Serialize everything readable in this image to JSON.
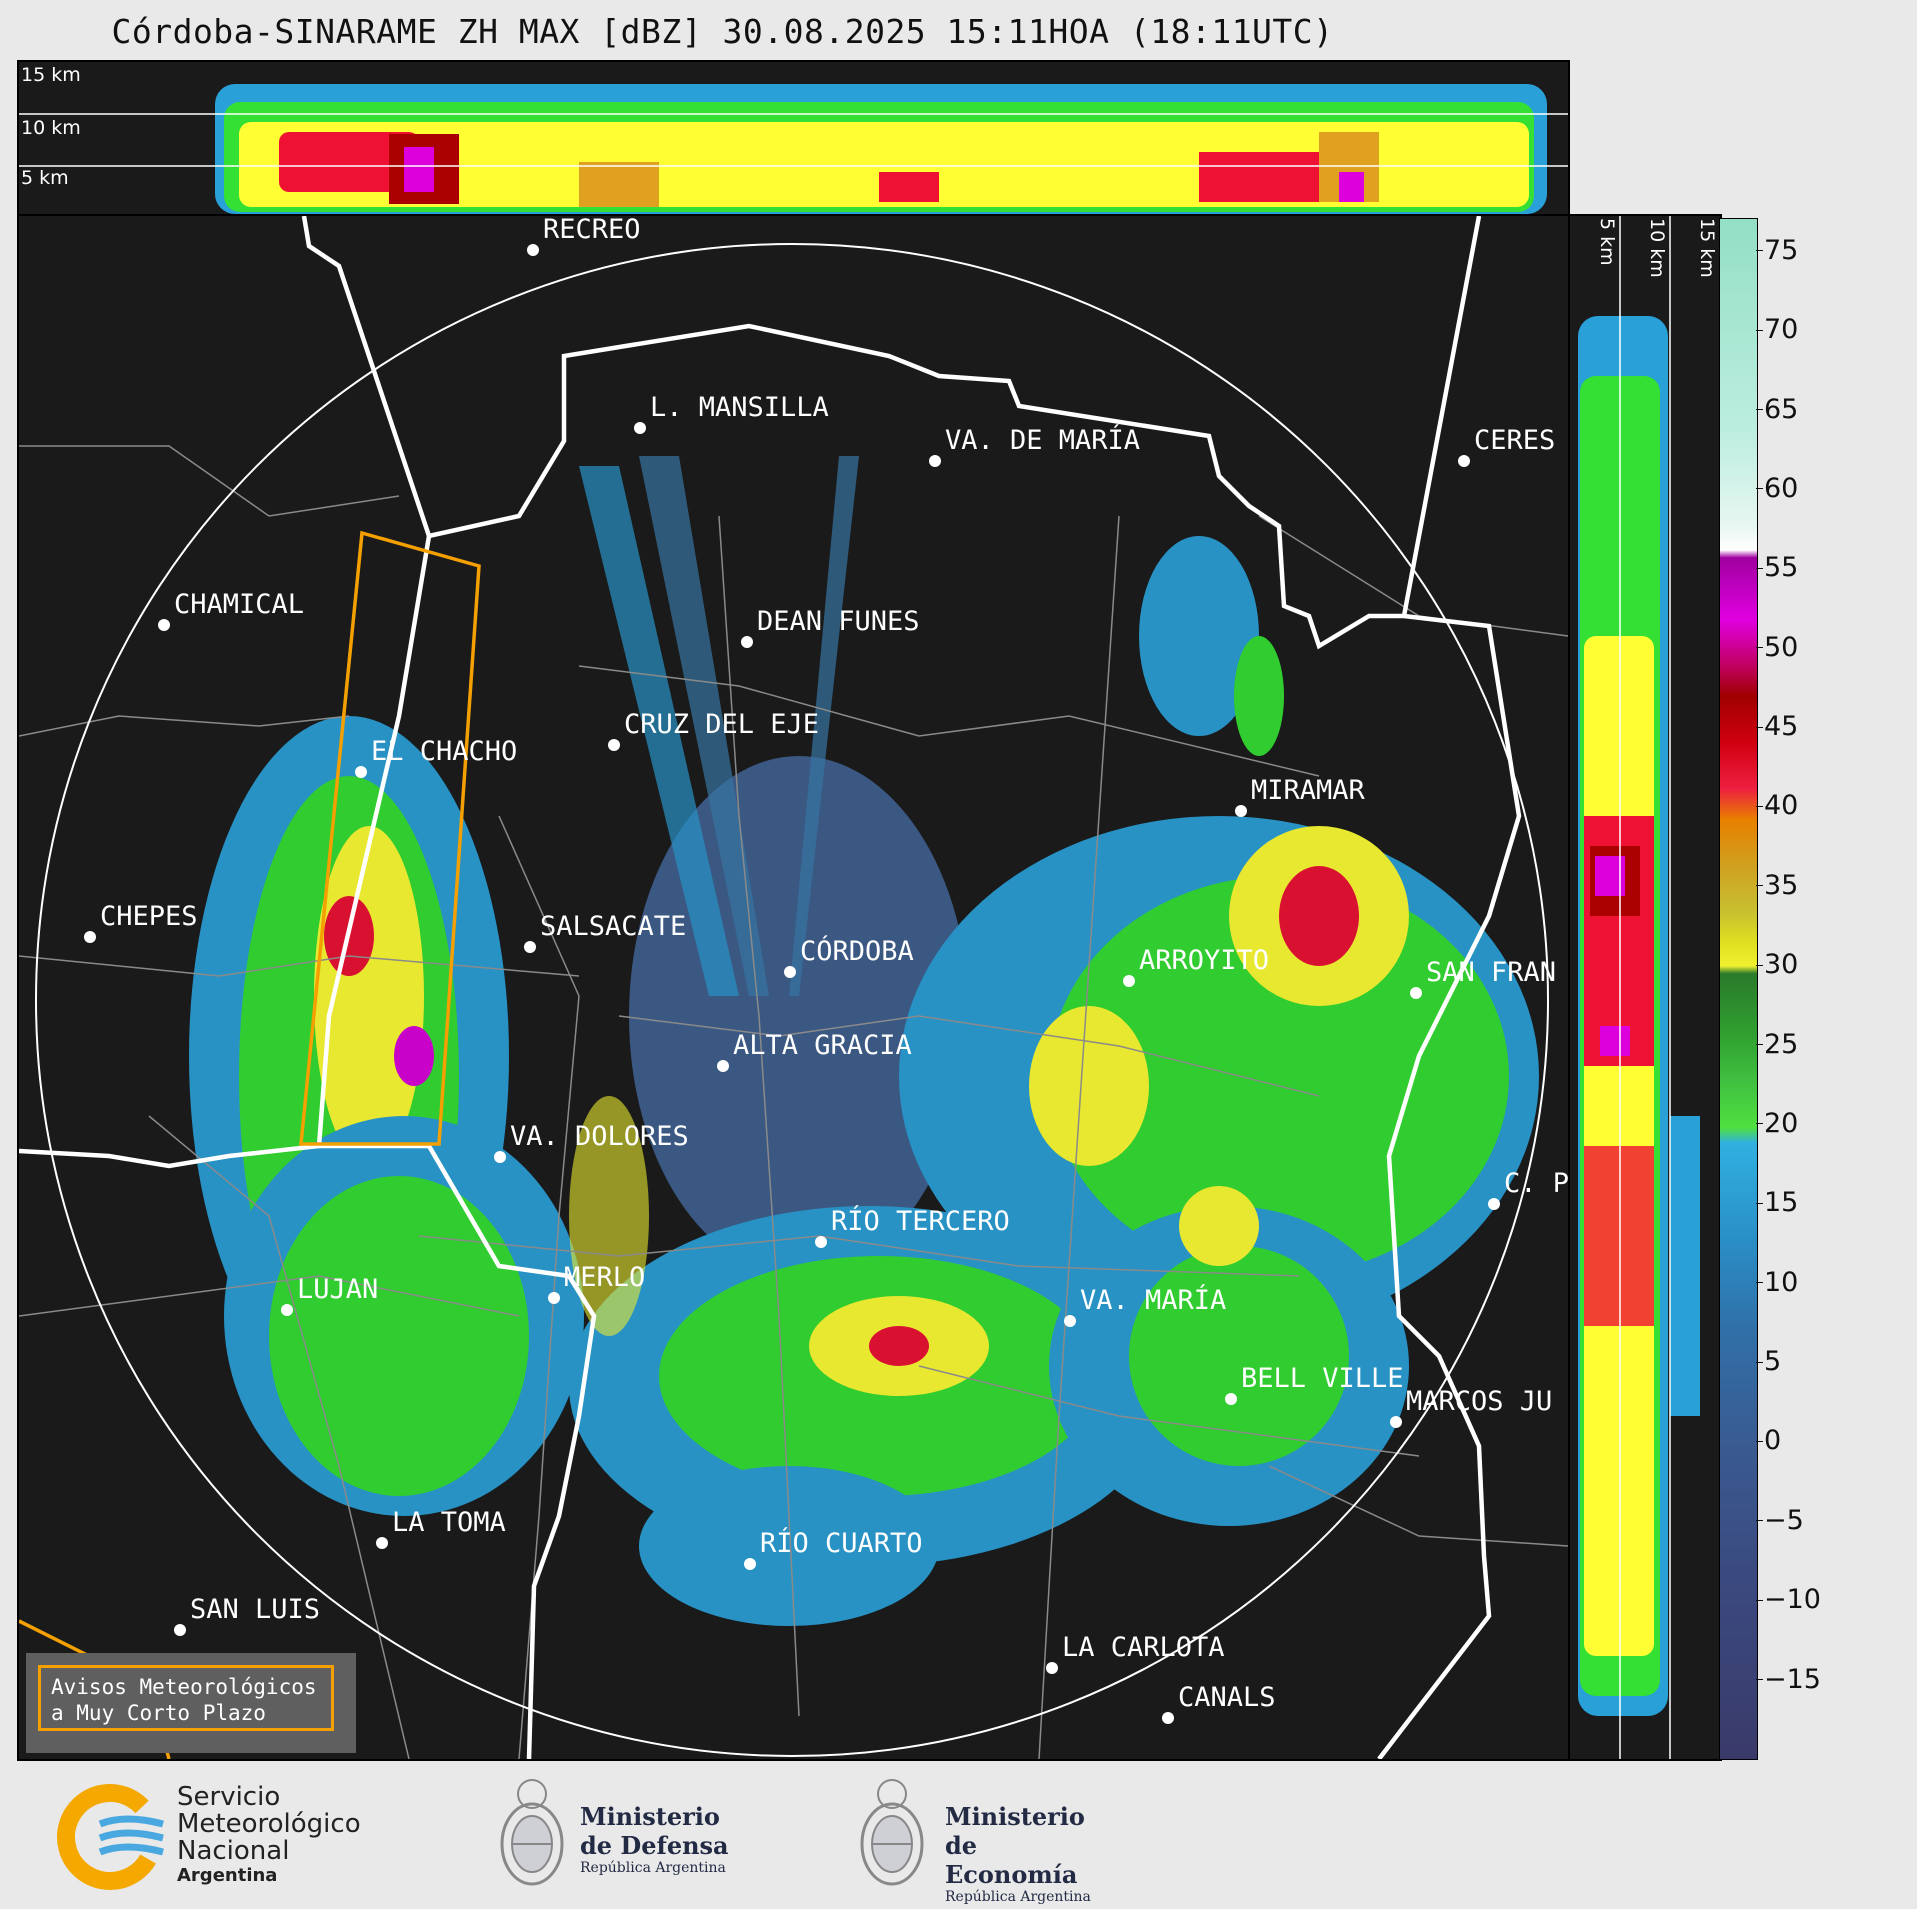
{
  "title": "Córdoba-SINARAME ZH MAX [dBZ] 30.08.2025 15:11HOA (18:11UTC)",
  "top_panel": {
    "altitude_labels": [
      "15 km",
      "10 km",
      "5 km"
    ]
  },
  "side_panel": {
    "altitude_labels": [
      "5 km",
      "10 km",
      "15 km"
    ]
  },
  "colorbar": {
    "ticks": [
      "75",
      "70",
      "65",
      "60",
      "55",
      "50",
      "45",
      "40",
      "35",
      "30",
      "25",
      "20",
      "15",
      "10",
      "5",
      "0",
      "−5",
      "−10",
      "−15"
    ],
    "range": [
      -20,
      77
    ]
  },
  "cities": [
    {
      "name": "RECREO"
    },
    {
      "name": "L. MANSILLA"
    },
    {
      "name": "VA. DE MARÍA"
    },
    {
      "name": "CERES"
    },
    {
      "name": "CHAMICAL"
    },
    {
      "name": "DEAN FUNES"
    },
    {
      "name": "CRUZ DEL EJE"
    },
    {
      "name": "EL CHACHO"
    },
    {
      "name": "MIRAMAR"
    },
    {
      "name": "CHEPES"
    },
    {
      "name": "SALSACATE"
    },
    {
      "name": "CÓRDOBA"
    },
    {
      "name": "ARROYITO"
    },
    {
      "name": "SAN FRAN"
    },
    {
      "name": "ALTA GRACIA"
    },
    {
      "name": "VA. DOLORES"
    },
    {
      "name": "C. P"
    },
    {
      "name": "RÍO TERCERO"
    },
    {
      "name": "MERLO"
    },
    {
      "name": "LUJAN"
    },
    {
      "name": "VA. MARÍA"
    },
    {
      "name": "BELL VILLE"
    },
    {
      "name": "MARCOS JU"
    },
    {
      "name": "LA TOMA"
    },
    {
      "name": "RÍO CUARTO"
    },
    {
      "name": "SAN LUIS"
    },
    {
      "name": "LA CARLOTA"
    },
    {
      "name": "CANALS"
    }
  ],
  "warning_box": {
    "line1": "Avisos Meteorológicos",
    "line2": "a Muy Corto Plazo"
  },
  "logos": {
    "smn": {
      "line1": "Servicio",
      "line2": "Meteorológico",
      "line3": "Nacional",
      "line4": "Argentina"
    },
    "defensa": {
      "line1": "Ministerio",
      "line2": "de Defensa",
      "line3": "República Argentina"
    },
    "economia": {
      "line1": "Ministerio",
      "line2": "de Economía",
      "line3": "República Argentina"
    }
  },
  "colors": {
    "background": "#1a1a1a",
    "outline": "#ffffff",
    "warning": "#f4a000",
    "scale": [
      "#3a3a6a",
      "#3f5f8f",
      "#3a7fb0",
      "#2aa0d8",
      "#33e033",
      "#2a8a2a",
      "#ffff33",
      "#e0a020",
      "#ee1133",
      "#aa0000",
      "#dd00dd",
      "#ffffff",
      "#9de0c8"
    ]
  }
}
